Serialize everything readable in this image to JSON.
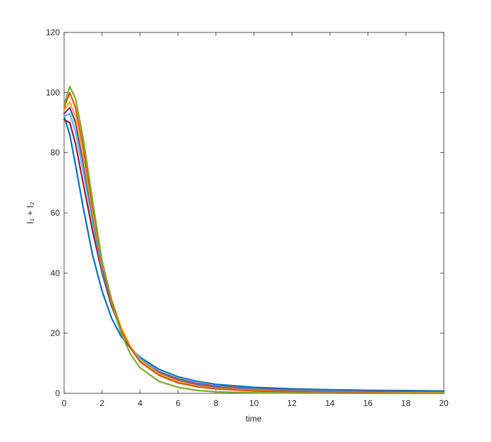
{
  "chart_data": {
    "type": "line",
    "xlabel": "time",
    "ylabel": "I₁ + I₂",
    "x": [
      0,
      0.3,
      0.6,
      1,
      1.5,
      2,
      2.5,
      3,
      3.5,
      4,
      5,
      6,
      7,
      8,
      10,
      12,
      14,
      16,
      18,
      20
    ],
    "series": [
      {
        "color": "#0072BD",
        "values": [
          92,
          86,
          76,
          62,
          46,
          34,
          25,
          19,
          15,
          12,
          8,
          5.5,
          4,
          3,
          2,
          1.5,
          1.2,
          1,
          0.9,
          0.8
        ]
      },
      {
        "color": "#A2142F",
        "values": [
          91,
          90,
          83,
          70,
          54,
          40,
          29,
          21,
          15.5,
          11.5,
          7.2,
          4.8,
          3.3,
          2.4,
          1.5,
          1.1,
          0.8,
          0.7,
          0.6,
          0.5
        ]
      },
      {
        "color": "#4DBEEE",
        "values": [
          92,
          93,
          87,
          74,
          57,
          41,
          30,
          21.5,
          15.5,
          11.5,
          7,
          4.5,
          3,
          2.2,
          1.4,
          1,
          0.8,
          0.6,
          0.5,
          0.5
        ]
      },
      {
        "color": "#7E2F8E",
        "values": [
          93,
          95,
          90,
          77,
          59,
          42,
          30,
          21,
          15,
          11,
          6.8,
          4.3,
          2.8,
          2,
          1.2,
          0.8,
          0.6,
          0.5,
          0.4,
          0.4
        ]
      },
      {
        "color": "#EDB120",
        "values": [
          94,
          97,
          92,
          79,
          60,
          43,
          31,
          22,
          15.5,
          11,
          6.5,
          4,
          2.5,
          1.7,
          1,
          0.6,
          0.4,
          0.3,
          0.2,
          0.2
        ]
      },
      {
        "color": "#D95319",
        "values": [
          95,
          100,
          95,
          82,
          62,
          44,
          31,
          21,
          15,
          10.5,
          6,
          3.5,
          2.2,
          1.5,
          0.8,
          0.5,
          0.3,
          0.2,
          0.1,
          0.1
        ]
      },
      {
        "color": "#77AC30",
        "values": [
          96,
          102,
          98,
          85,
          64,
          44,
          30,
          20,
          13,
          8.5,
          4,
          2,
          1,
          0.5,
          0.2,
          0.1,
          0.05,
          0,
          0,
          0
        ]
      }
    ],
    "xlim": [
      0,
      20
    ],
    "xticks": [
      0,
      2,
      4,
      6,
      8,
      10,
      12,
      14,
      16,
      18,
      20
    ],
    "ylim": [
      0,
      120
    ],
    "yticks": [
      0,
      20,
      40,
      60,
      80,
      100,
      120
    ],
    "grid": false
  }
}
